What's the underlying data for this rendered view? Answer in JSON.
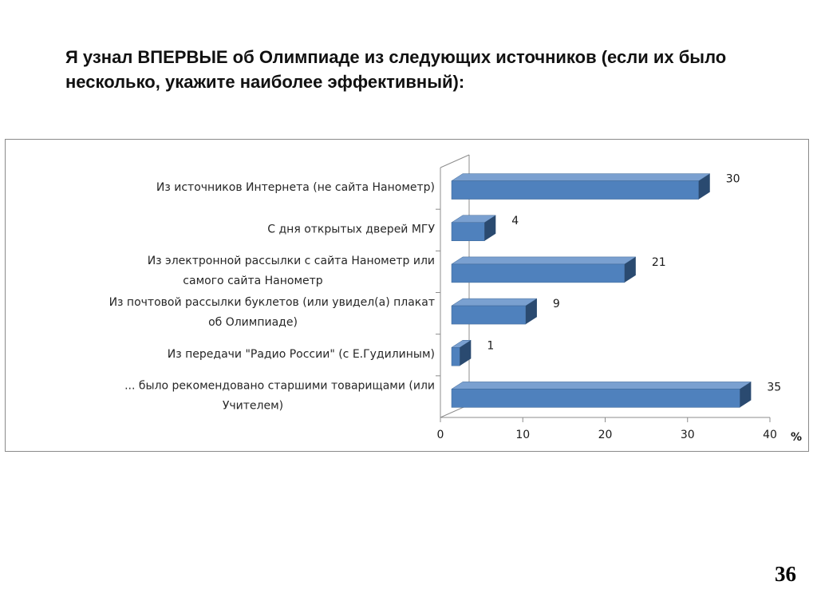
{
  "slide": {
    "title": "Я узнал ВПЕРВЫЕ об Олимпиаде из следующих источников (если их было несколько, укажите наиболее эффективный):",
    "page_number": "36"
  },
  "chart_data": {
    "type": "bar",
    "orientation": "horizontal",
    "style": "3d",
    "categories": [
      [
        "Из источников Интернета (не сайта Нанометр)"
      ],
      [
        "С  дня  открытых дверей МГУ"
      ],
      [
        "Из электронной рассылки с сайта Нанометр или",
        "самого сайта Нанометр"
      ],
      [
        "Из почтовой рассылки буклетов (или увидел(а) плакат",
        "об Олимпиаде)"
      ],
      [
        "Из передачи \"Радио России\" (с Е.Гудилиным)"
      ],
      [
        "... было рекомендовано старшими товарищами (или",
        "Учителем)"
      ]
    ],
    "values": [
      30,
      4,
      21,
      9,
      1,
      35
    ],
    "value_labels": [
      "30",
      "4",
      "21",
      "9",
      "1",
      "35"
    ],
    "xlim": [
      0,
      40
    ],
    "x_ticks": [
      "0",
      "10",
      "20",
      "30",
      "40"
    ],
    "xlabel": "%",
    "ylabel": "",
    "grid": false,
    "bar_color": "#4f81bd",
    "bar_side_color": "#2a4a70",
    "bar_top_color": "#7aa0d0"
  }
}
